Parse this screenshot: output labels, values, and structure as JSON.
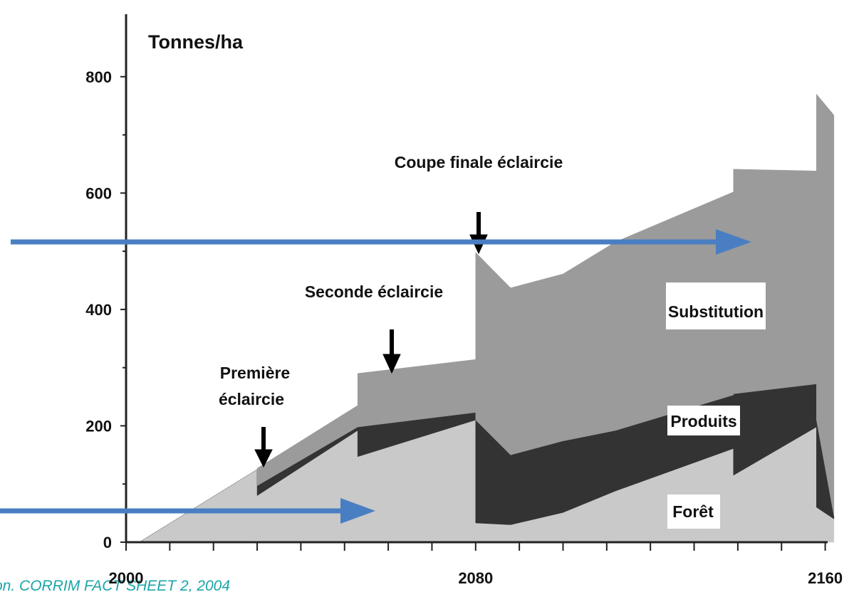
{
  "chart_data": {
    "type": "stacked_area",
    "y_axis_label": "Tonnes/ha",
    "source": "on. CORRIM FACT SHEET 2, 2004",
    "annotations": [
      [
        "Coupe finale éclaircie"
      ],
      [
        "Seconde éclaircie"
      ],
      [
        "Première",
        "éclaircie"
      ]
    ],
    "x": [
      2003,
      2030,
      2030,
      2053,
      2053,
      2080,
      2080,
      2088,
      2100,
      2112,
      2139,
      2139,
      2158,
      2158,
      2162
    ],
    "series": [
      {
        "name": "Forêt",
        "color": "#c9c9c9",
        "values": [
          0,
          125,
          80,
          192,
          147,
          210,
          33,
          30,
          51,
          88,
          161,
          115,
          198,
          60,
          40
        ]
      },
      {
        "name": "Produits",
        "color": "#333333",
        "values": [
          0,
          0,
          17,
          6,
          51,
          13,
          177,
          120,
          123,
          104,
          92,
          140,
          74,
          150,
          5
        ]
      },
      {
        "name": "Substitution",
        "color": "#9b9b9b",
        "values": [
          0,
          0,
          30,
          37,
          92,
          91,
          288,
          287,
          287,
          324,
          349,
          386,
          366,
          560,
          689
        ]
      }
    ],
    "xlim": [
      2000,
      2163
    ],
    "xticks": [
      2000,
      2080,
      2160
    ],
    "xminor_ticks": [
      2010,
      2020,
      2030,
      2040,
      2050,
      2060,
      2070,
      2090,
      2100,
      2110,
      2120,
      2130,
      2140,
      2150
    ],
    "ylim": [
      0,
      900
    ],
    "yticks": [
      0,
      200,
      400,
      600,
      800
    ],
    "yminor_ticks": [
      100,
      300,
      500,
      700
    ],
    "grid": false
  }
}
